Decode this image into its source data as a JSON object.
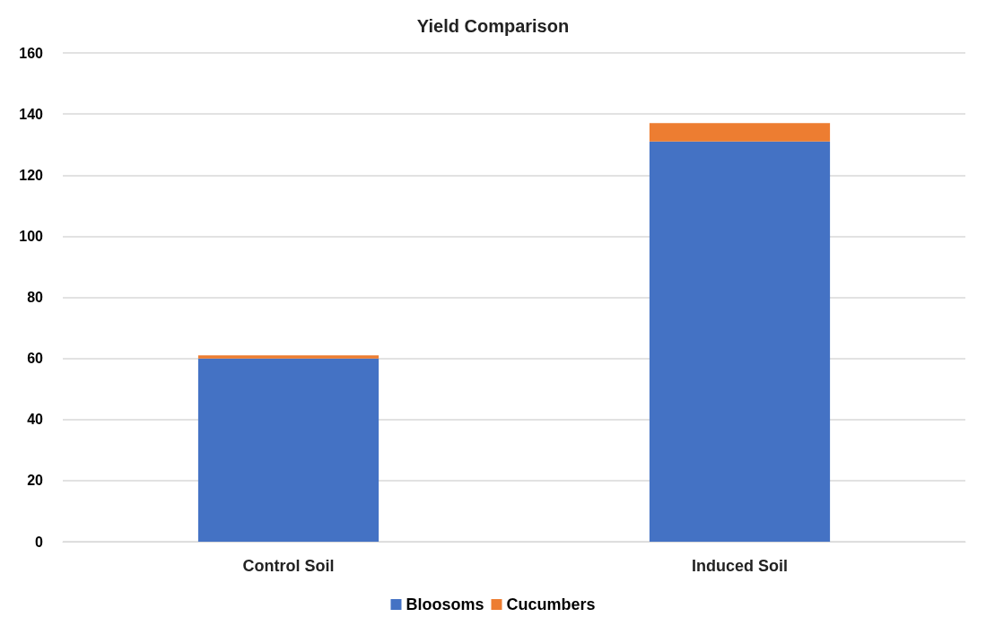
{
  "chart_data": {
    "type": "bar",
    "title": "Yield Comparison",
    "categories": [
      "Control Soil",
      "Induced Soil"
    ],
    "stacked": true,
    "series": [
      {
        "name": "Bloosoms",
        "color": "#4472c4",
        "values": [
          60,
          131
        ]
      },
      {
        "name": "Cucumbers",
        "color": "#ed7d31",
        "values": [
          1,
          6
        ]
      }
    ],
    "ylim": [
      0,
      160
    ],
    "yticks": [
      0,
      20,
      40,
      60,
      80,
      100,
      120,
      140,
      160
    ],
    "grid": "y",
    "legend": "bottom"
  }
}
